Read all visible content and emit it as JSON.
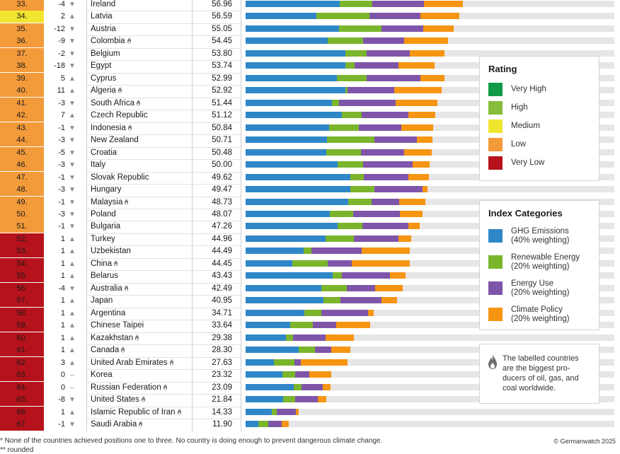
{
  "colors": {
    "ghg": "#2f87c8",
    "renewable": "#7ab52c",
    "energy_use": "#7e55a9",
    "policy": "#f59512",
    "very_high": "#119a47",
    "high": "#86bd3a",
    "medium": "#f0e52f",
    "low": "#f39a3a",
    "very_low": "#b5121b",
    "track": "#e6e6e6"
  },
  "chart_data": {
    "type": "bar",
    "stacked": true,
    "orientation": "horizontal",
    "title": "",
    "value_max": 100,
    "series_order": [
      "ghg",
      "renewable",
      "energy_use",
      "policy"
    ],
    "rows": [
      {
        "rank": "33.",
        "change": "-4",
        "dir": "down",
        "country": "Ireland",
        "producer": false,
        "score": "56.96",
        "rating": "low",
        "ghg": 25.5,
        "renewable": 8.9,
        "energy_use": 13.9,
        "policy": 10.6
      },
      {
        "rank": "34.",
        "change": "2",
        "dir": "up",
        "country": "Latvia",
        "producer": false,
        "score": "56.59",
        "rating": "medium",
        "ghg": 19.2,
        "renewable": 14.4,
        "energy_use": 13.9,
        "policy": 10.4
      },
      {
        "rank": "35.",
        "change": "-12",
        "dir": "down",
        "country": "Austria",
        "producer": false,
        "score": "55.05",
        "rating": "low",
        "ghg": 25.3,
        "renewable": 11.5,
        "energy_use": 11.3,
        "policy": 8.4
      },
      {
        "rank": "36.",
        "change": "-9",
        "dir": "down",
        "country": "Colombia",
        "producer": true,
        "score": "54.45",
        "rating": "low",
        "ghg": 22.3,
        "renewable": 9.6,
        "energy_use": 11.1,
        "policy": 11.9
      },
      {
        "rank": "37.",
        "change": "-2",
        "dir": "down",
        "country": "Belgium",
        "producer": false,
        "score": "53.80",
        "rating": "low",
        "ghg": 27.1,
        "renewable": 5.8,
        "energy_use": 11.7,
        "policy": 9.4
      },
      {
        "rank": "38.",
        "change": "-18",
        "dir": "down",
        "country": "Egypt",
        "producer": false,
        "score": "53.74",
        "rating": "low",
        "ghg": 27.1,
        "renewable": 2.5,
        "energy_use": 11.9,
        "policy": 9.8
      },
      {
        "rank": "39.",
        "change": "5",
        "dir": "up",
        "country": "Cyprus",
        "producer": false,
        "score": "52.99",
        "rating": "low",
        "ghg": 24.8,
        "renewable": 8.1,
        "energy_use": 14.6,
        "policy": 6.5
      },
      {
        "rank": "40.",
        "change": "11",
        "dir": "up",
        "country": "Algeria",
        "producer": true,
        "score": "52.92",
        "rating": "low",
        "ghg": 27.1,
        "renewable": 0.6,
        "energy_use": 12.7,
        "policy": 12.7
      },
      {
        "rank": "41.",
        "change": "-3",
        "dir": "down",
        "country": "South Africa",
        "producer": true,
        "score": "51.44",
        "rating": "low",
        "ghg": 23.4,
        "renewable": 1.9,
        "energy_use": 15.4,
        "policy": 11.3
      },
      {
        "rank": "42.",
        "change": "7",
        "dir": "up",
        "country": "Czech Republic",
        "producer": false,
        "score": "51.12",
        "rating": "low",
        "ghg": 26.1,
        "renewable": 5.4,
        "energy_use": 12.7,
        "policy": 7.3
      },
      {
        "rank": "43.",
        "change": "-1",
        "dir": "down",
        "country": "Indonesia",
        "producer": true,
        "score": "50.84",
        "rating": "low",
        "ghg": 22.6,
        "renewable": 8.1,
        "energy_use": 11.5,
        "policy": 8.6
      },
      {
        "rank": "44.",
        "change": "-3",
        "dir": "down",
        "country": "New Zealand",
        "producer": false,
        "score": "50.71",
        "rating": "low",
        "ghg": 22.1,
        "renewable": 12.9,
        "energy_use": 11.5,
        "policy": 4.2
      },
      {
        "rank": "45.",
        "change": "-5",
        "dir": "down",
        "country": "Croatia",
        "producer": false,
        "score": "50.48",
        "rating": "low",
        "ghg": 21.9,
        "renewable": 9.4,
        "energy_use": 11.7,
        "policy": 7.5
      },
      {
        "rank": "46.",
        "change": "-3",
        "dir": "down",
        "country": "Italy",
        "producer": false,
        "score": "50.00",
        "rating": "low",
        "ghg": 25.0,
        "renewable": 6.9,
        "energy_use": 13.4,
        "policy": 4.6
      },
      {
        "rank": "47.",
        "change": "-1",
        "dir": "down",
        "country": "Slovak Republic",
        "producer": false,
        "score": "49.62",
        "rating": "low",
        "ghg": 28.4,
        "renewable": 3.6,
        "energy_use": 12.1,
        "policy": 5.6
      },
      {
        "rank": "48.",
        "change": "-3",
        "dir": "down",
        "country": "Hungary",
        "producer": false,
        "score": "49.47",
        "rating": "low",
        "ghg": 28.4,
        "renewable": 6.5,
        "energy_use": 13.1,
        "policy": 1.3
      },
      {
        "rank": "49.",
        "change": "-1",
        "dir": "down",
        "country": "Malaysia",
        "producer": true,
        "score": "48.73",
        "rating": "low",
        "ghg": 27.8,
        "renewable": 6.3,
        "energy_use": 7.5,
        "policy": 7.1
      },
      {
        "rank": "50.",
        "change": "-3",
        "dir": "down",
        "country": "Poland",
        "producer": false,
        "score": "48.07",
        "rating": "low",
        "ghg": 22.8,
        "renewable": 6.3,
        "energy_use": 12.7,
        "policy": 6.2
      },
      {
        "rank": "51.",
        "change": "-1",
        "dir": "down",
        "country": "Bulgaria",
        "producer": false,
        "score": "47.26",
        "rating": "low",
        "ghg": 25.0,
        "renewable": 6.7,
        "energy_use": 12.5,
        "policy": 3.1
      },
      {
        "rank": "52.",
        "change": "1",
        "dir": "up",
        "country": "Turkey",
        "producer": false,
        "score": "44.96",
        "rating": "very_low",
        "ghg": 21.7,
        "renewable": 7.7,
        "energy_use": 12.1,
        "policy": 3.5
      },
      {
        "rank": "53.",
        "change": "1",
        "dir": "up",
        "country": "Uzbekistan",
        "producer": false,
        "score": "44.49",
        "rating": "very_low",
        "ghg": 15.7,
        "renewable": 2.1,
        "energy_use": 13.6,
        "policy": 13.1
      },
      {
        "rank": "54.",
        "change": "1",
        "dir": "up",
        "country": "China",
        "producer": true,
        "score": "44.45",
        "rating": "very_low",
        "ghg": 12.7,
        "renewable": 9.6,
        "energy_use": 6.5,
        "policy": 15.7
      },
      {
        "rank": "55.",
        "change": "1",
        "dir": "up",
        "country": "Belarus",
        "producer": false,
        "score": "43.43",
        "rating": "very_low",
        "ghg": 23.6,
        "renewable": 2.5,
        "energy_use": 13.1,
        "policy": 4.2
      },
      {
        "rank": "56.",
        "change": "-4",
        "dir": "down",
        "country": "Australia",
        "producer": true,
        "score": "42.49",
        "rating": "very_low",
        "ghg": 20.5,
        "renewable": 6.9,
        "energy_use": 7.7,
        "policy": 7.5
      },
      {
        "rank": "57.",
        "change": "1",
        "dir": "up",
        "country": "Japan",
        "producer": false,
        "score": "40.95",
        "rating": "very_low",
        "ghg": 21.1,
        "renewable": 4.6,
        "energy_use": 11.1,
        "policy": 4.2
      },
      {
        "rank": "58.",
        "change": "1",
        "dir": "up",
        "country": "Argentina",
        "producer": false,
        "score": "34.71",
        "rating": "very_low",
        "ghg": 15.9,
        "renewable": 4.6,
        "energy_use": 12.7,
        "policy": 1.5
      },
      {
        "rank": "59.",
        "change": "1",
        "dir": "up",
        "country": "Chinese Taipei",
        "producer": false,
        "score": "33.64",
        "rating": "very_low",
        "ghg": 12.1,
        "renewable": 6.1,
        "energy_use": 6.3,
        "policy": 9.2
      },
      {
        "rank": "60.",
        "change": "1",
        "dir": "up",
        "country": "Kazakhstan",
        "producer": true,
        "score": "29.38",
        "rating": "very_low",
        "ghg": 10.9,
        "renewable": 1.9,
        "energy_use": 8.8,
        "policy": 7.7
      },
      {
        "rank": "61.",
        "change": "1",
        "dir": "up",
        "country": "Canada",
        "producer": true,
        "score": "28.30",
        "rating": "very_low",
        "ghg": 14.4,
        "renewable": 4.4,
        "energy_use": 4.4,
        "policy": 5.2
      },
      {
        "rank": "62.",
        "change": "3",
        "dir": "up",
        "country": "United Arab Emirates",
        "producer": true,
        "score": "27.63",
        "rating": "very_low",
        "ghg": 7.7,
        "renewable": 5.6,
        "energy_use": 1.7,
        "policy": 12.7
      },
      {
        "rank": "63.",
        "change": "0",
        "dir": "none",
        "country": "Korea",
        "producer": false,
        "score": "23.32",
        "rating": "very_low",
        "ghg": 10.0,
        "renewable": 3.5,
        "energy_use": 3.8,
        "policy": 6.0
      },
      {
        "rank": "64.",
        "change": "0",
        "dir": "none",
        "country": "Russian Federation",
        "producer": true,
        "score": "23.09",
        "rating": "very_low",
        "ghg": 13.1,
        "renewable": 2.1,
        "energy_use": 5.8,
        "policy": 2.1
      },
      {
        "rank": "65.",
        "change": "-8",
        "dir": "down",
        "country": "United States",
        "producer": true,
        "score": "21.84",
        "rating": "very_low",
        "ghg": 10.2,
        "renewable": 3.3,
        "energy_use": 6.1,
        "policy": 2.3
      },
      {
        "rank": "66.",
        "change": "1",
        "dir": "up",
        "country": "Islamic Republic of Iran",
        "producer": true,
        "score": "14.33",
        "rating": "very_low",
        "ghg": 7.1,
        "renewable": 1.3,
        "energy_use": 5.2,
        "policy": 0.8
      },
      {
        "rank": "67.",
        "change": "-1",
        "dir": "down",
        "country": "Saudi Arabia",
        "producer": true,
        "score": "11.90",
        "rating": "very_low",
        "ghg": 3.5,
        "renewable": 2.7,
        "energy_use": 3.5,
        "policy": 2.1
      }
    ]
  },
  "legend_rating": {
    "title": "Rating",
    "items": [
      {
        "key": "very_high",
        "label": "Very High"
      },
      {
        "key": "high",
        "label": "High"
      },
      {
        "key": "medium",
        "label": "Medium"
      },
      {
        "key": "low",
        "label": "Low"
      },
      {
        "key": "very_low",
        "label": "Very Low"
      }
    ]
  },
  "legend_categories": {
    "title": "Index Categories",
    "items": [
      {
        "key": "ghg",
        "line1": "GHG Emissions",
        "line2": "(40% weighting)"
      },
      {
        "key": "renewable",
        "line1": "Renewable Energy",
        "line2": "(20% weighting)"
      },
      {
        "key": "energy_use",
        "line1": "Energy Use",
        "line2": "(20% weighting)"
      },
      {
        "key": "policy",
        "line1": "Climate Policy",
        "line2": "(20% weighting)"
      }
    ]
  },
  "producer_note": {
    "icon": "flame-icon",
    "lines": [
      "The labelled countries",
      "are the biggest pro-",
      "ducers of oil, gas, and",
      "coal worldwide."
    ]
  },
  "footer": {
    "note1": "* None of the countries achieved positions one to three. No country is doing enough to prevent dangerous climate change.",
    "note2": "** rounded",
    "credit": "© Germanwatch 2025"
  },
  "symbols": {
    "up": "▲",
    "down": "▼",
    "none": "–",
    "flame": "🔥"
  }
}
